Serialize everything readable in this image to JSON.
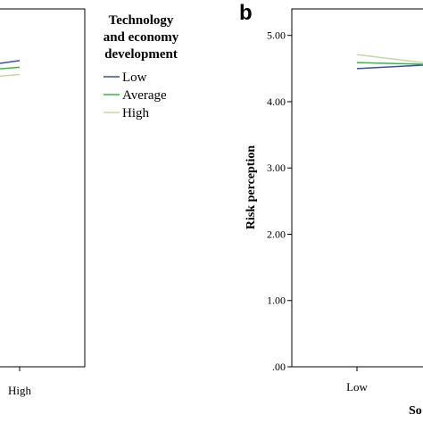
{
  "chart_data": [
    {
      "type": "line",
      "panel": "a",
      "categories": [
        "",
        "High"
      ],
      "series": [
        {
          "name": "Low",
          "values": [
            null,
            4.62
          ]
        },
        {
          "name": "Average",
          "values": [
            null,
            4.52
          ]
        },
        {
          "name": "High",
          "values": [
            null,
            4.41
          ]
        }
      ],
      "ylim": [
        0,
        5.4
      ],
      "legend": {
        "title_lines": [
          "Technology",
          "and economy",
          "development"
        ],
        "entries": [
          "Low",
          "Average",
          "High"
        ],
        "placement": "right"
      }
    },
    {
      "type": "line",
      "panel": "b",
      "panel_letter": "b",
      "categories": [
        "Low",
        ""
      ],
      "series": [
        {
          "name": "Low",
          "values": [
            4.5,
            4.56
          ]
        },
        {
          "name": "Average",
          "values": [
            4.59,
            4.56
          ]
        },
        {
          "name": "High",
          "values": [
            4.71,
            4.57
          ]
        }
      ],
      "ylabel": "Risk perception",
      "xlabel_partial": "So",
      "ylim": [
        0,
        5.4
      ],
      "yticks": [
        ".00",
        "1.00",
        "2.00",
        "3.00",
        "4.00",
        "5.00"
      ]
    }
  ],
  "colors": {
    "Low": "#3a50a0",
    "Average": "#3cb54a",
    "High": "#c8d6a6"
  }
}
